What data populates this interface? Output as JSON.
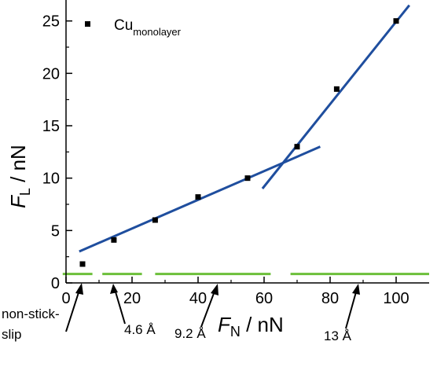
{
  "chart_data": {
    "type": "scatter",
    "xlabel": {
      "symbol": "F",
      "subscript": "N",
      "unit": " / nN"
    },
    "ylabel": {
      "symbol": "F",
      "subscript": "L",
      "unit": " / nN"
    },
    "xlim": [
      0,
      110
    ],
    "ylim": [
      0,
      27
    ],
    "x_ticks": [
      0,
      20,
      40,
      60,
      80,
      100
    ],
    "y_ticks": [
      0,
      5,
      10,
      15,
      20,
      25
    ],
    "x_tick_labels": [
      "0",
      "20",
      "40",
      "60",
      "80",
      "100"
    ],
    "y_tick_labels": [
      "0",
      "5",
      "10",
      "15",
      "20",
      "25"
    ],
    "legend": {
      "position": "top-left",
      "label_main": "Cu",
      "label_sub": "monolayer"
    },
    "series": [
      {
        "name": "Cu monolayer",
        "marker": "square",
        "color": "#000000",
        "x": [
          5,
          14.5,
          27,
          40,
          55,
          70,
          82,
          100
        ],
        "y": [
          1.8,
          4.1,
          6.0,
          8.2,
          10.0,
          13.0,
          18.5,
          25.0
        ]
      }
    ],
    "fit_lines": [
      {
        "color": "#1f4e9e",
        "x": [
          4,
          77
        ],
        "y": [
          3.0,
          13.0
        ]
      },
      {
        "color": "#1f4e9e",
        "x": [
          59.5,
          104
        ],
        "y": [
          9.0,
          26.5
        ]
      }
    ],
    "green_segments": {
      "color": "#6cbf3a",
      "y": 0.85,
      "ranges": [
        [
          -1,
          8
        ],
        [
          11,
          23
        ],
        [
          27,
          62
        ],
        [
          68,
          110
        ]
      ]
    },
    "annotations": [
      {
        "lines": [
          "non-stick-",
          "slip"
        ],
        "arrow_to_x": 7
      },
      {
        "lines": [
          "4.6 Å"
        ],
        "arrow_to_x": 14
      },
      {
        "lines": [
          "9.2 Å"
        ],
        "arrow_to_x": 45
      },
      {
        "lines": [
          "13 Å"
        ],
        "arrow_to_x": 86
      }
    ]
  }
}
